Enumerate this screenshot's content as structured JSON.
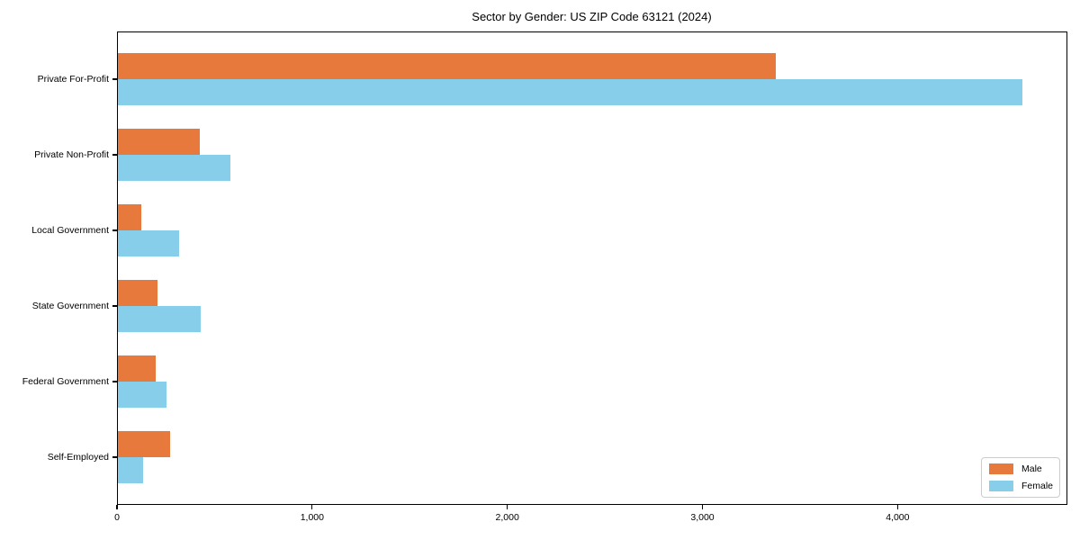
{
  "chart_data": {
    "type": "bar",
    "orientation": "horizontal",
    "title": "Sector by Gender: US ZIP Code 63121 (2024)",
    "categories": [
      "Private For-Profit",
      "Private Non-Profit",
      "Local Government",
      "State Government",
      "Federal Government",
      "Self-Employed"
    ],
    "series": [
      {
        "name": "Male",
        "color": "#e8793c",
        "values": [
          3377,
          423,
          126,
          205,
          197,
          272
        ]
      },
      {
        "name": "Female",
        "color": "#87ceeb",
        "values": [
          4637,
          580,
          318,
          428,
          254,
          134
        ]
      }
    ],
    "xlabel": "",
    "ylabel": "",
    "xlim": [
      0,
      4870
    ],
    "xticks": [
      0,
      1000,
      2000,
      3000,
      4000
    ],
    "xtick_labels": [
      "0",
      "1,000",
      "2,000",
      "3,000",
      "4,000"
    ],
    "grid": false,
    "legend": {
      "position": "lower-right",
      "entries": [
        "Male",
        "Female"
      ]
    }
  }
}
